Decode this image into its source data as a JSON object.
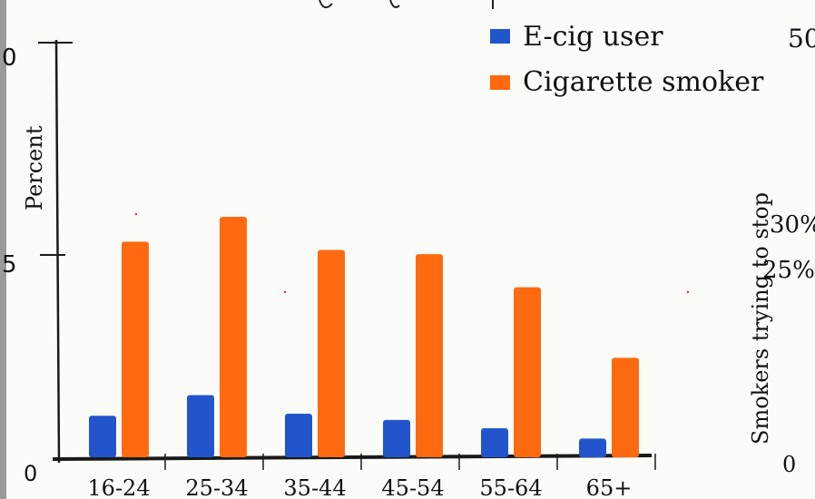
{
  "chart_data": {
    "type": "bar",
    "categories": [
      "16-24",
      "25-34",
      "35-44",
      "45-54",
      "55-64",
      "65+"
    ],
    "series": [
      {
        "name": "E-cig user",
        "color": "#2255cc",
        "values": [
          1.0,
          1.5,
          1.05,
          0.9,
          0.7,
          0.45
        ]
      },
      {
        "name": "Cigarette smoker",
        "color": "#ff6a10",
        "values": [
          5.2,
          5.8,
          5.0,
          4.9,
          4.1,
          2.4
        ]
      }
    ],
    "ylabel": "Percent",
    "ylim": [
      0,
      10
    ],
    "yticks": [
      "0",
      "5",
      "0"
    ],
    "grid": false,
    "legend_position": "top-right"
  },
  "right_panel": {
    "top_label": "50",
    "tick_30": "30%",
    "tick_25": "25%",
    "ylabel": "Smokers trying to stop",
    "bottom_label": "0"
  }
}
